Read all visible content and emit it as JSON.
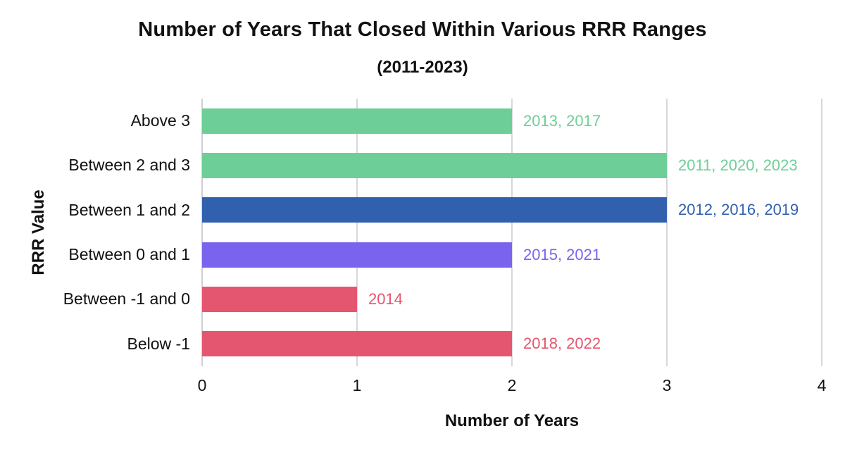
{
  "chart_data": {
    "type": "bar",
    "orientation": "horizontal",
    "title": "Number of Years That Closed Within Various RRR Ranges",
    "subtitle": "(2011-2023)",
    "xlabel": "Number of Years",
    "ylabel": "RRR Value",
    "xlim": [
      0,
      4
    ],
    "x_ticks": [
      "0",
      "1",
      "2",
      "3",
      "4"
    ],
    "grid": "vertical",
    "legend": "none",
    "categories": [
      "Above 3",
      "Between 2 and 3",
      "Between 1 and 2",
      "Between 0 and 1",
      "Between -1 and 0",
      "Below -1"
    ],
    "values": [
      2,
      3,
      3,
      2,
      1,
      2
    ],
    "annotations": [
      "2013, 2017",
      "2011, 2020, 2023",
      "2012, 2016, 2019",
      "2015, 2021",
      "2014",
      "2018, 2022"
    ],
    "bar_colors": [
      "#6dcf97",
      "#6dcf97",
      "#3161ae",
      "#7b64ed",
      "#e4566f",
      "#e4566f"
    ],
    "gridline_color": "#d7d7db"
  }
}
